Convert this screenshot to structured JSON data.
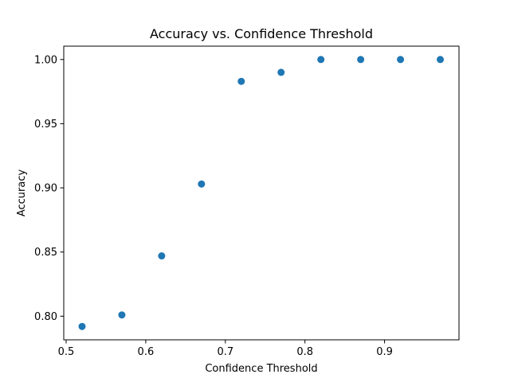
{
  "chart_data": {
    "type": "scatter",
    "title": "Accuracy vs. Confidence Threshold",
    "xlabel": "Confidence Threshold",
    "ylabel": "Accuracy",
    "x": [
      0.52,
      0.57,
      0.62,
      0.67,
      0.72,
      0.77,
      0.82,
      0.87,
      0.92,
      0.97
    ],
    "y": [
      0.792,
      0.801,
      0.847,
      0.903,
      0.983,
      0.99,
      1.0,
      1.0,
      1.0,
      1.0
    ],
    "xlim": [
      0.497,
      0.9935
    ],
    "ylim": [
      0.7816,
      1.0104
    ],
    "xticks": [
      0.5,
      0.6,
      0.7,
      0.8,
      0.9
    ],
    "xtick_labels": [
      "0.5",
      "0.6",
      "0.7",
      "0.8",
      "0.9"
    ],
    "yticks": [
      0.8,
      0.85,
      0.9,
      0.95,
      1.0
    ],
    "ytick_labels": [
      "0.80",
      "0.85",
      "0.90",
      "0.95",
      "1.00"
    ],
    "grid": false,
    "marker_color": "#1f77b4"
  }
}
